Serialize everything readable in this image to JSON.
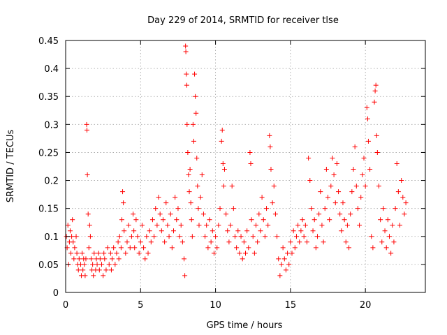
{
  "chart_data": {
    "type": "scatter",
    "title": "Day 229 of 2014, SRMTID for receiver tlse",
    "xlabel": "GPS time / hours",
    "ylabel": "SRMTID / TECUs",
    "xlim": [
      0,
      24
    ],
    "ylim": [
      0,
      0.45
    ],
    "xticks": [
      0,
      5,
      10,
      15,
      20
    ],
    "xtick_labels": [
      "0",
      "5",
      "10",
      "15",
      "20"
    ],
    "yticks": [
      0,
      0.05,
      0.1,
      0.15,
      0.2,
      0.25,
      0.3,
      0.35,
      0.4,
      0.45
    ],
    "ytick_labels": [
      "0",
      "0.05",
      "0.1",
      "0.15",
      "0.2",
      "0.25",
      "0.3",
      "0.35",
      "0.4",
      "0.45"
    ],
    "grid": true,
    "marker": "+",
    "color": "#ff0000",
    "series": [
      {
        "name": "SRMTID",
        "points": [
          [
            0.05,
            0.1
          ],
          [
            0.1,
            0.08
          ],
          [
            0.15,
            0.12
          ],
          [
            0.2,
            0.05
          ],
          [
            0.25,
            0.09
          ],
          [
            0.3,
            0.11
          ],
          [
            0.35,
            0.07
          ],
          [
            0.4,
            0.1
          ],
          [
            0.45,
            0.13
          ],
          [
            0.5,
            0.09
          ],
          [
            0.55,
            0.06
          ],
          [
            0.6,
            0.08
          ],
          [
            0.7,
            0.1
          ],
          [
            0.75,
            0.07
          ],
          [
            0.8,
            0.05
          ],
          [
            0.85,
            0.04
          ],
          [
            0.9,
            0.06
          ],
          [
            1.0,
            0.05
          ],
          [
            1.05,
            0.03
          ],
          [
            1.1,
            0.07
          ],
          [
            1.15,
            0.04
          ],
          [
            1.2,
            0.06
          ],
          [
            1.25,
            0.05
          ],
          [
            1.3,
            0.03
          ],
          [
            1.35,
            0.06
          ],
          [
            1.4,
            0.3
          ],
          [
            1.42,
            0.29
          ],
          [
            1.45,
            0.21
          ],
          [
            1.5,
            0.14
          ],
          [
            1.55,
            0.08
          ],
          [
            1.6,
            0.12
          ],
          [
            1.65,
            0.1
          ],
          [
            1.7,
            0.06
          ],
          [
            1.75,
            0.04
          ],
          [
            1.8,
            0.05
          ],
          [
            1.85,
            0.03
          ],
          [
            1.9,
            0.07
          ],
          [
            2.0,
            0.04
          ],
          [
            2.05,
            0.06
          ],
          [
            2.1,
            0.05
          ],
          [
            2.2,
            0.07
          ],
          [
            2.25,
            0.04
          ],
          [
            2.3,
            0.06
          ],
          [
            2.4,
            0.05
          ],
          [
            2.5,
            0.03
          ],
          [
            2.55,
            0.07
          ],
          [
            2.6,
            0.06
          ],
          [
            2.7,
            0.04
          ],
          [
            2.8,
            0.08
          ],
          [
            2.9,
            0.05
          ],
          [
            3.0,
            0.07
          ],
          [
            3.05,
            0.04
          ],
          [
            3.1,
            0.06
          ],
          [
            3.2,
            0.08
          ],
          [
            3.3,
            0.05
          ],
          [
            3.4,
            0.07
          ],
          [
            3.5,
            0.09
          ],
          [
            3.55,
            0.06
          ],
          [
            3.6,
            0.1
          ],
          [
            3.7,
            0.08
          ],
          [
            3.75,
            0.13
          ],
          [
            3.8,
            0.18
          ],
          [
            3.85,
            0.16
          ],
          [
            3.9,
            0.11
          ],
          [
            4.0,
            0.07
          ],
          [
            4.1,
            0.09
          ],
          [
            4.2,
            0.12
          ],
          [
            4.3,
            0.08
          ],
          [
            4.4,
            0.1
          ],
          [
            4.5,
            0.14
          ],
          [
            4.55,
            0.11
          ],
          [
            4.6,
            0.08
          ],
          [
            4.7,
            0.13
          ],
          [
            4.8,
            0.1
          ],
          [
            4.9,
            0.07
          ],
          [
            5.0,
            0.09
          ],
          [
            5.1,
            0.12
          ],
          [
            5.2,
            0.08
          ],
          [
            5.3,
            0.06
          ],
          [
            5.4,
            0.1
          ],
          [
            5.5,
            0.07
          ],
          [
            5.6,
            0.11
          ],
          [
            5.7,
            0.09
          ],
          [
            5.8,
            0.13
          ],
          [
            5.9,
            0.1
          ],
          [
            6.0,
            0.15
          ],
          [
            6.1,
            0.12
          ],
          [
            6.2,
            0.17
          ],
          [
            6.3,
            0.14
          ],
          [
            6.4,
            0.11
          ],
          [
            6.5,
            0.13
          ],
          [
            6.6,
            0.09
          ],
          [
            6.7,
            0.16
          ],
          [
            6.8,
            0.12
          ],
          [
            6.9,
            0.1
          ],
          [
            7.0,
            0.14
          ],
          [
            7.1,
            0.08
          ],
          [
            7.2,
            0.11
          ],
          [
            7.3,
            0.17
          ],
          [
            7.4,
            0.13
          ],
          [
            7.5,
            0.15
          ],
          [
            7.6,
            0.1
          ],
          [
            7.7,
            0.12
          ],
          [
            7.8,
            0.09
          ],
          [
            7.9,
            0.06
          ],
          [
            7.95,
            0.03
          ],
          [
            8.0,
            0.44
          ],
          [
            8.02,
            0.43
          ],
          [
            8.05,
            0.39
          ],
          [
            8.08,
            0.37
          ],
          [
            8.1,
            0.3
          ],
          [
            8.15,
            0.25
          ],
          [
            8.2,
            0.21
          ],
          [
            8.25,
            0.18
          ],
          [
            8.3,
            0.22
          ],
          [
            8.35,
            0.16
          ],
          [
            8.4,
            0.13
          ],
          [
            8.45,
            0.1
          ],
          [
            8.5,
            0.3
          ],
          [
            8.55,
            0.27
          ],
          [
            8.6,
            0.39
          ],
          [
            8.65,
            0.35
          ],
          [
            8.7,
            0.32
          ],
          [
            8.75,
            0.24
          ],
          [
            8.8,
            0.19
          ],
          [
            8.85,
            0.15
          ],
          [
            8.9,
            0.12
          ],
          [
            9.0,
            0.17
          ],
          [
            9.1,
            0.21
          ],
          [
            9.2,
            0.14
          ],
          [
            9.3,
            0.1
          ],
          [
            9.4,
            0.12
          ],
          [
            9.5,
            0.08
          ],
          [
            9.6,
            0.13
          ],
          [
            9.7,
            0.09
          ],
          [
            9.8,
            0.11
          ],
          [
            9.9,
            0.07
          ],
          [
            10.0,
            0.1
          ],
          [
            10.1,
            0.08
          ],
          [
            10.2,
            0.12
          ],
          [
            10.3,
            0.15
          ],
          [
            10.4,
            0.27
          ],
          [
            10.45,
            0.29
          ],
          [
            10.5,
            0.23
          ],
          [
            10.55,
            0.19
          ],
          [
            10.6,
            0.22
          ],
          [
            10.7,
            0.14
          ],
          [
            10.8,
            0.11
          ],
          [
            10.9,
            0.09
          ],
          [
            11.0,
            0.12
          ],
          [
            11.1,
            0.19
          ],
          [
            11.2,
            0.15
          ],
          [
            11.3,
            0.1
          ],
          [
            11.4,
            0.08
          ],
          [
            11.5,
            0.11
          ],
          [
            11.6,
            0.07
          ],
          [
            11.7,
            0.1
          ],
          [
            11.8,
            0.06
          ],
          [
            11.9,
            0.09
          ],
          [
            12.0,
            0.07
          ],
          [
            12.1,
            0.11
          ],
          [
            12.2,
            0.08
          ],
          [
            12.3,
            0.25
          ],
          [
            12.35,
            0.23
          ],
          [
            12.4,
            0.13
          ],
          [
            12.5,
            0.1
          ],
          [
            12.6,
            0.07
          ],
          [
            12.7,
            0.12
          ],
          [
            12.8,
            0.09
          ],
          [
            12.9,
            0.14
          ],
          [
            13.0,
            0.11
          ],
          [
            13.1,
            0.17
          ],
          [
            13.2,
            0.13
          ],
          [
            13.3,
            0.1
          ],
          [
            13.4,
            0.15
          ],
          [
            13.5,
            0.12
          ],
          [
            13.6,
            0.28
          ],
          [
            13.65,
            0.26
          ],
          [
            13.7,
            0.22
          ],
          [
            13.8,
            0.16
          ],
          [
            13.9,
            0.19
          ],
          [
            14.0,
            0.14
          ],
          [
            14.1,
            0.1
          ],
          [
            14.2,
            0.06
          ],
          [
            14.3,
            0.03
          ],
          [
            14.4,
            0.05
          ],
          [
            14.5,
            0.08
          ],
          [
            14.6,
            0.06
          ],
          [
            14.7,
            0.04
          ],
          [
            14.8,
            0.07
          ],
          [
            14.9,
            0.05
          ],
          [
            15.0,
            0.09
          ],
          [
            15.1,
            0.07
          ],
          [
            15.2,
            0.11
          ],
          [
            15.3,
            0.08
          ],
          [
            15.4,
            0.1
          ],
          [
            15.5,
            0.12
          ],
          [
            15.6,
            0.09
          ],
          [
            15.7,
            0.11
          ],
          [
            15.8,
            0.13
          ],
          [
            15.9,
            0.1
          ],
          [
            16.0,
            0.12
          ],
          [
            16.1,
            0.09
          ],
          [
            16.2,
            0.24
          ],
          [
            16.3,
            0.2
          ],
          [
            16.4,
            0.15
          ],
          [
            16.5,
            0.11
          ],
          [
            16.6,
            0.13
          ],
          [
            16.7,
            0.08
          ],
          [
            16.8,
            0.1
          ],
          [
            16.9,
            0.14
          ],
          [
            17.0,
            0.18
          ],
          [
            17.1,
            0.12
          ],
          [
            17.2,
            0.09
          ],
          [
            17.3,
            0.15
          ],
          [
            17.4,
            0.22
          ],
          [
            17.5,
            0.17
          ],
          [
            17.6,
            0.13
          ],
          [
            17.7,
            0.19
          ],
          [
            17.8,
            0.24
          ],
          [
            17.9,
            0.21
          ],
          [
            18.0,
            0.16
          ],
          [
            18.1,
            0.23
          ],
          [
            18.2,
            0.18
          ],
          [
            18.3,
            0.14
          ],
          [
            18.4,
            0.11
          ],
          [
            18.5,
            0.16
          ],
          [
            18.6,
            0.13
          ],
          [
            18.7,
            0.09
          ],
          [
            18.8,
            0.12
          ],
          [
            18.9,
            0.08
          ],
          [
            19.0,
            0.14
          ],
          [
            19.1,
            0.18
          ],
          [
            19.2,
            0.22
          ],
          [
            19.3,
            0.26
          ],
          [
            19.4,
            0.19
          ],
          [
            19.5,
            0.15
          ],
          [
            19.6,
            0.12
          ],
          [
            19.7,
            0.17
          ],
          [
            19.8,
            0.21
          ],
          [
            19.9,
            0.24
          ],
          [
            20.0,
            0.19
          ],
          [
            20.1,
            0.33
          ],
          [
            20.15,
            0.31
          ],
          [
            20.2,
            0.27
          ],
          [
            20.3,
            0.22
          ],
          [
            20.4,
            0.1
          ],
          [
            20.5,
            0.08
          ],
          [
            20.6,
            0.34
          ],
          [
            20.65,
            0.36
          ],
          [
            20.7,
            0.37
          ],
          [
            20.75,
            0.28
          ],
          [
            20.8,
            0.25
          ],
          [
            20.9,
            0.19
          ],
          [
            21.0,
            0.13
          ],
          [
            21.1,
            0.09
          ],
          [
            21.2,
            0.15
          ],
          [
            21.3,
            0.11
          ],
          [
            21.4,
            0.08
          ],
          [
            21.5,
            0.13
          ],
          [
            21.6,
            0.1
          ],
          [
            21.7,
            0.07
          ],
          [
            21.8,
            0.12
          ],
          [
            21.9,
            0.09
          ],
          [
            22.0,
            0.15
          ],
          [
            22.1,
            0.23
          ],
          [
            22.2,
            0.18
          ],
          [
            22.3,
            0.12
          ],
          [
            22.4,
            0.2
          ],
          [
            22.5,
            0.17
          ],
          [
            22.6,
            0.14
          ],
          [
            22.7,
            0.16
          ]
        ]
      }
    ]
  }
}
